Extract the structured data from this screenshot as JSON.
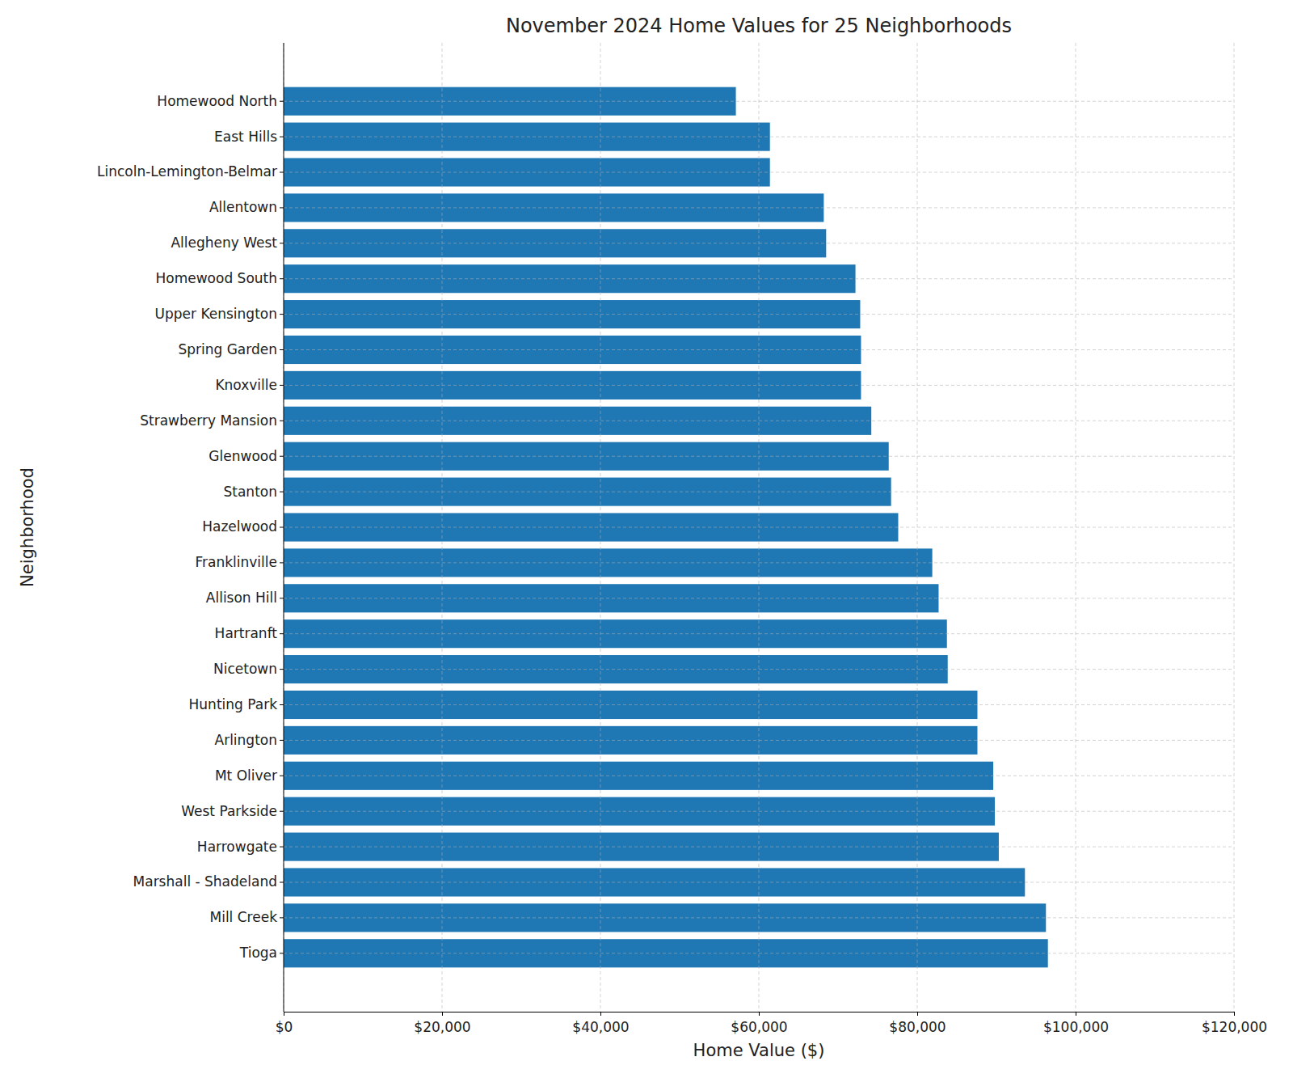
{
  "chart_data": {
    "type": "bar",
    "orientation": "horizontal",
    "title": "November 2024 Home Values for 25 Neighborhoods",
    "x_label": "Home Value ($)",
    "y_label": "Neighborhood",
    "categories": [
      "Homewood North",
      "East Hills",
      "Lincoln-Lemington-Belmar",
      "Allentown",
      "Allegheny West",
      "Homewood South",
      "Upper Kensington",
      "Spring Garden",
      "Knoxville",
      "Strawberry Mansion",
      "Glenwood",
      "Stanton",
      "Hazelwood",
      "Franklinville",
      "Allison Hill",
      "Hartranft",
      "Nicetown",
      "Hunting Park",
      "Arlington",
      "Mt Oliver",
      "West Parkside",
      "Harrowgate",
      "Marshall - Shadeland",
      "Mill Creek",
      "Tioga"
    ],
    "values": [
      57100,
      61400,
      61400,
      68200,
      68500,
      72200,
      72800,
      72900,
      72900,
      74200,
      76400,
      76700,
      77600,
      81900,
      82700,
      83750,
      83850,
      87600,
      87600,
      89600,
      89800,
      90300,
      93600,
      96250,
      96500
    ],
    "color": "#1f77b4",
    "xlim": [
      0,
      120000
    ],
    "xticks": [
      {
        "value": 0,
        "label": "$0"
      },
      {
        "value": 20000,
        "label": "$20,000"
      },
      {
        "value": 40000,
        "label": "$40,000"
      },
      {
        "value": 60000,
        "label": "$60,000"
      },
      {
        "value": 80000,
        "label": "$80,000"
      },
      {
        "value": 100000,
        "label": "$100,000"
      },
      {
        "value": 120000,
        "label": "$120,000"
      }
    ],
    "grid": true
  }
}
